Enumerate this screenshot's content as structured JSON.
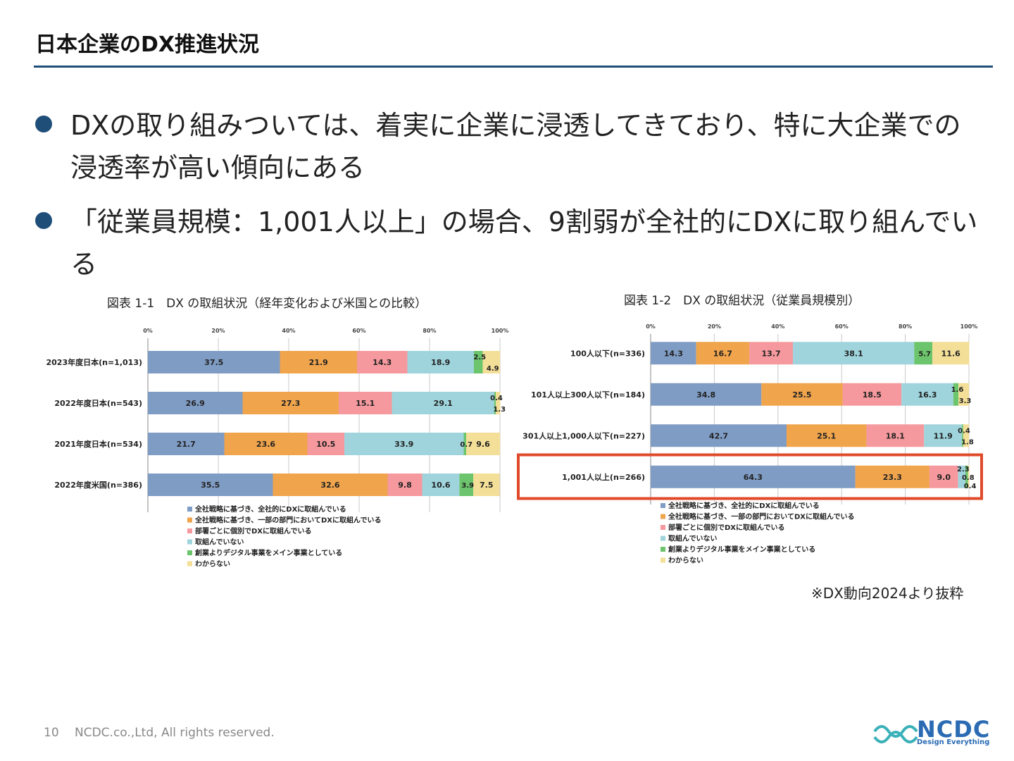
{
  "slide": {
    "title": "日本企業のDX推進状況",
    "bullets": [
      "DXの取り組みついては、着実に企業に浸透してきており、特に大企業での浸透率が高い傾向にある",
      "「従業員規模：1,001人以上」の場合、9割弱が全社的にDXに取り組んでいる"
    ],
    "source": "※DX動向2024より抜粋",
    "page_number": "10",
    "copyright": "NCDC.co.,Ltd, All rights reserved.",
    "logo_text": "NCDC",
    "logo_tagline": "Design Everything",
    "accent_color": "#1f4e79",
    "highlight_color": "#e04a2a"
  },
  "chart_data": [
    {
      "type": "bar",
      "stacked": true,
      "orientation": "horizontal",
      "title": "図表 1-1　DX の取組状況（経年変化および米国との比較）",
      "categories": [
        "2023年度日本(n=1,013)",
        "2022年度日本(n=543)",
        "2021年度日本(n=534)",
        "2022年度米国(n=386)"
      ],
      "xticks": [
        "0%",
        "20%",
        "40%",
        "60%",
        "80%",
        "100%"
      ],
      "xlim": [
        0,
        100
      ],
      "series": [
        {
          "name": "全社戦略に基づき、全社的にDXに取組んでいる",
          "color": "#7f9cc4",
          "values": [
            37.5,
            26.9,
            21.7,
            35.5
          ]
        },
        {
          "name": "全社戦略に基づき、一部の部門においてDXに取組んでいる",
          "color": "#f0a44c",
          "values": [
            21.9,
            27.3,
            23.6,
            32.6
          ]
        },
        {
          "name": "部署ごとに個別でDXに取組んでいる",
          "color": "#f5999e",
          "values": [
            14.3,
            15.1,
            10.5,
            9.8
          ]
        },
        {
          "name": "取組んでいない",
          "color": "#9fd4dc",
          "values": [
            18.9,
            29.1,
            33.9,
            10.6
          ]
        },
        {
          "name": "創業よりデジタル事業をメイン事業としている",
          "color": "#6cc46c",
          "values": [
            2.5,
            0.4,
            0.7,
            3.9
          ]
        },
        {
          "name": "わからない",
          "color": "#f3df98",
          "values": [
            4.9,
            1.3,
            9.6,
            7.5
          ]
        }
      ],
      "legend": "bottom"
    },
    {
      "type": "bar",
      "stacked": true,
      "orientation": "horizontal",
      "title": "図表 1-2　DX の取組状況（従業員規模別）",
      "categories": [
        "100人以下(n=336)",
        "101人以上300人以下(n=184)",
        "301人以上1,000人以下(n=227)",
        "1,001人以上(n=266)"
      ],
      "xticks": [
        "0%",
        "20%",
        "40%",
        "60%",
        "80%",
        "100%"
      ],
      "xlim": [
        0,
        100
      ],
      "highlight_category": "1,001人以上(n=266)",
      "series": [
        {
          "name": "全社戦略に基づき、全社的にDXに取組んでいる",
          "color": "#7f9cc4",
          "values": [
            14.3,
            34.8,
            42.7,
            64.3
          ]
        },
        {
          "name": "全社戦略に基づき、一部の部門においてDXに取組んでいる",
          "color": "#f0a44c",
          "values": [
            16.7,
            25.5,
            25.1,
            23.3
          ]
        },
        {
          "name": "部署ごとに個別でDXに取組んでいる",
          "color": "#f5999e",
          "values": [
            13.7,
            18.5,
            18.1,
            9.0
          ]
        },
        {
          "name": "取組んでいない",
          "color": "#9fd4dc",
          "values": [
            38.1,
            16.3,
            11.9,
            2.3
          ]
        },
        {
          "name": "創業よりデジタル事業をメイン事業としている",
          "color": "#6cc46c",
          "values": [
            5.7,
            1.6,
            0.4,
            0.8
          ]
        },
        {
          "name": "わからない",
          "color": "#f3df98",
          "values": [
            11.6,
            3.3,
            1.8,
            0.4
          ]
        }
      ],
      "legend": "bottom"
    }
  ]
}
